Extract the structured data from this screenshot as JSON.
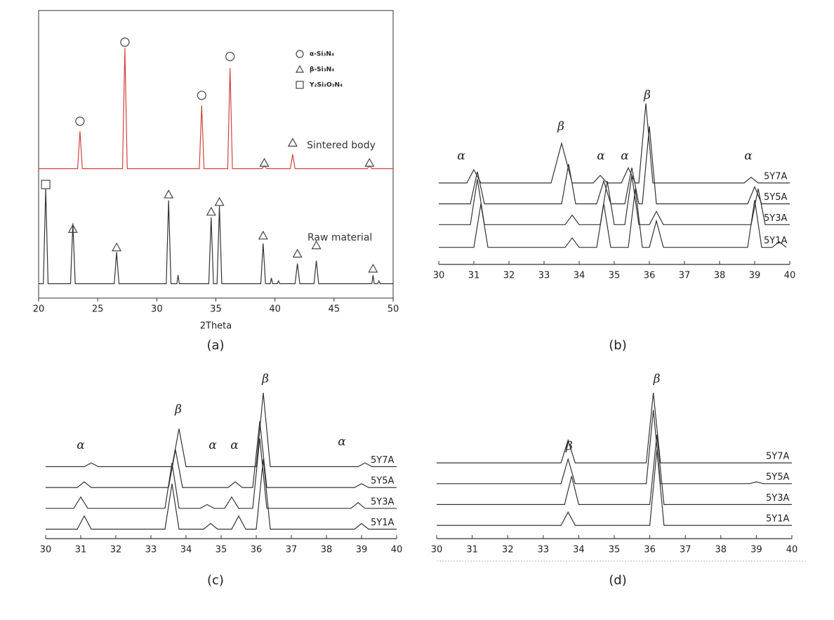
{
  "charts": [
    {
      "type": "line",
      "caption": "(a)",
      "xlabel": "2Theta",
      "xlim": [
        20,
        50
      ],
      "xticks": [
        20,
        25,
        30,
        35,
        40,
        45,
        50
      ],
      "ylim": [
        0,
        100
      ],
      "frame": true,
      "legend": [
        {
          "symbol": "circle",
          "label": "α-Si₃N₄"
        },
        {
          "symbol": "triangle",
          "label": "β-Si₃N₄"
        },
        {
          "symbol": "square",
          "label": "Y₂Si₃O₃N₄"
        }
      ],
      "series": [
        {
          "name": "Sintered body",
          "color": "#d0443f",
          "x": [
            20,
            23.3,
            23.5,
            23.7,
            27.1,
            27.3,
            27.5,
            33.6,
            33.8,
            34.0,
            36.0,
            36.2,
            36.4,
            38.9,
            39.1,
            39.3,
            41.3,
            41.5,
            41.7,
            47.8,
            48.0,
            48.2,
            50
          ],
          "values": [
            45,
            45,
            58,
            45,
            45,
            87,
            45,
            45,
            67,
            45,
            45,
            80,
            45,
            45,
            46,
            45,
            45,
            50,
            45,
            45,
            46,
            45,
            45
          ]
        },
        {
          "name": "Raw material",
          "color": "#333333",
          "x": [
            20,
            20.4,
            20.6,
            20.8,
            22.7,
            22.9,
            23.1,
            26.4,
            26.6,
            26.8,
            30.8,
            31.0,
            31.2,
            31.7,
            31.8,
            31.9,
            34.4,
            34.6,
            34.8,
            35.1,
            35.3,
            35.5,
            38.8,
            39.0,
            39.2,
            39.6,
            39.7,
            39.8,
            40.2,
            40.3,
            40.4,
            41.7,
            41.9,
            42.1,
            43.3,
            43.5,
            43.7,
            48.2,
            48.3,
            48.4,
            48.7,
            48.8,
            48.9,
            50
          ],
          "values": [
            5,
            5,
            38,
            5,
            5,
            26,
            5,
            5,
            16,
            5,
            5,
            34,
            5,
            5,
            8,
            5,
            5,
            28,
            5,
            5,
            32,
            5,
            5,
            19,
            5,
            5,
            7,
            5,
            5,
            6,
            5,
            5,
            12,
            5,
            5,
            13,
            5,
            5,
            8,
            5,
            5,
            6,
            5,
            5
          ]
        }
      ],
      "annotations": [
        {
          "text": "Sintered body",
          "x": 42.7,
          "y": 53
        },
        {
          "text": "Raw material",
          "x": 42.75,
          "y": 21
        }
      ],
      "markers": [
        {
          "symbol": "circle",
          "x": 23.5,
          "y": 61.5
        },
        {
          "symbol": "circle",
          "x": 27.3,
          "y": 89
        },
        {
          "symbol": "circle",
          "x": 33.8,
          "y": 70.5
        },
        {
          "symbol": "circle",
          "x": 36.2,
          "y": 84
        },
        {
          "symbol": "triangle",
          "x": 39.1,
          "y": 47
        },
        {
          "symbol": "triangle",
          "x": 41.5,
          "y": 54
        },
        {
          "symbol": "triangle",
          "x": 48.0,
          "y": 47
        },
        {
          "symbol": "square",
          "x": 20.6,
          "y": 39.5
        },
        {
          "symbol": "triangle",
          "x": 22.9,
          "y": 24
        },
        {
          "symbol": "triangle",
          "x": 26.6,
          "y": 17.6
        },
        {
          "symbol": "triangle",
          "x": 31.0,
          "y": 36
        },
        {
          "symbol": "triangle",
          "x": 34.6,
          "y": 30
        },
        {
          "symbol": "triangle",
          "x": 35.3,
          "y": 33.4
        },
        {
          "symbol": "triangle",
          "x": 39.0,
          "y": 21.7
        },
        {
          "symbol": "triangle",
          "x": 41.9,
          "y": 15.4
        },
        {
          "symbol": "triangle",
          "x": 43.5,
          "y": 18.3
        },
        {
          "symbol": "triangle",
          "x": 48.3,
          "y": 10.2
        }
      ]
    },
    {
      "type": "line",
      "caption": "(b)",
      "xlim": [
        30,
        40
      ],
      "xticks": [
        30,
        31,
        32,
        33,
        34,
        35,
        36,
        37,
        38,
        39,
        40
      ],
      "ylim": [
        0,
        100
      ],
      "frame": false,
      "series": [
        {
          "name": "5Y7A",
          "color": "#333333",
          "x": [
            30,
            30.8,
            31.0,
            31.2,
            33.2,
            33.5,
            33.8,
            34.4,
            34.6,
            34.8,
            35.2,
            35.4,
            35.6,
            35.7,
            35.9,
            36.1,
            38.7,
            38.9,
            39.1,
            40
          ],
          "values": [
            43,
            43,
            50,
            43,
            43,
            64,
            43,
            43,
            47,
            43,
            43,
            51,
            43,
            43,
            85,
            43,
            43,
            46,
            43,
            43
          ]
        },
        {
          "name": "5Y5A",
          "color": "#333333",
          "x": [
            30,
            30.9,
            31.1,
            31.3,
            33.5,
            33.7,
            33.9,
            34.5,
            34.7,
            34.9,
            35.3,
            35.5,
            35.7,
            35.8,
            36.0,
            36.2,
            38.8,
            39.0,
            39.2,
            40
          ],
          "values": [
            32,
            32,
            49,
            32,
            32,
            53,
            32,
            32,
            44,
            32,
            32,
            51,
            32,
            32,
            73,
            32,
            32,
            41,
            32,
            32
          ]
        },
        {
          "name": "5Y3A",
          "color": "#333333",
          "x": [
            30,
            30.9,
            31.1,
            31.3,
            33.6,
            33.8,
            34.0,
            34.6,
            34.8,
            35.0,
            35.3,
            35.5,
            35.7,
            36.0,
            36.2,
            36.4,
            38.9,
            39.1,
            39.3,
            40
          ],
          "values": [
            21,
            21,
            45,
            21,
            21,
            26,
            21,
            21,
            44,
            21,
            21,
            47,
            21,
            21,
            28,
            21,
            21,
            40,
            21,
            21
          ]
        },
        {
          "name": "5Y1A",
          "color": "#333333",
          "x": [
            30,
            31.0,
            31.2,
            31.4,
            33.6,
            33.8,
            34.0,
            34.5,
            34.7,
            34.9,
            35.4,
            35.6,
            35.8,
            36.0,
            36.2,
            36.4,
            38.8,
            39.0,
            39.2,
            39.5,
            39.7,
            39.9
          ],
          "values": [
            9,
            9,
            32,
            9,
            9,
            14,
            9,
            9,
            32,
            9,
            9,
            40,
            9,
            9,
            23,
            9,
            9,
            34,
            9,
            9,
            12,
            9
          ]
        }
      ],
      "annotations": [
        {
          "text": "α",
          "x": 30.64,
          "y": 57
        },
        {
          "text": "β",
          "x": 33.48,
          "y": 72.6
        },
        {
          "text": "α",
          "x": 34.62,
          "y": 57
        },
        {
          "text": "α",
          "x": 35.3,
          "y": 57
        },
        {
          "text": "β",
          "x": 35.94,
          "y": 89
        },
        {
          "text": "α",
          "x": 38.82,
          "y": 57
        }
      ]
    },
    {
      "type": "line",
      "caption": "(c)",
      "xlim": [
        30,
        40
      ],
      "xticks": [
        30,
        31,
        32,
        33,
        34,
        35,
        36,
        37,
        38,
        39,
        40
      ],
      "ylim": [
        0,
        100
      ],
      "frame": false,
      "series": [
        {
          "name": "5Y7A",
          "color": "#333333",
          "x": [
            30,
            31.1,
            31.3,
            31.5,
            33.6,
            33.8,
            34.0,
            36.0,
            36.2,
            36.4,
            38.9,
            39.1,
            39.3,
            40
          ],
          "values": [
            38,
            38,
            40,
            38,
            38,
            58,
            38,
            38,
            77,
            38,
            38,
            40,
            38,
            38
          ]
        },
        {
          "name": "5Y5A",
          "color": "#333333",
          "x": [
            30,
            30.9,
            31.1,
            31.3,
            33.5,
            33.7,
            33.9,
            35.2,
            35.4,
            35.6,
            35.9,
            36.1,
            36.3,
            38.8,
            39.0,
            39.2,
            40
          ],
          "values": [
            27,
            27,
            30,
            27,
            27,
            47,
            27,
            27,
            30,
            27,
            27,
            62,
            27,
            27,
            29,
            27,
            27
          ]
        },
        {
          "name": "5Y3A",
          "color": "#333333",
          "x": [
            30,
            30.8,
            31.0,
            31.2,
            33.4,
            33.6,
            33.8,
            34.4,
            34.6,
            34.8,
            35.1,
            35.3,
            35.5,
            35.9,
            36.1,
            36.3,
            38.7,
            38.9,
            39.1,
            40
          ],
          "values": [
            16,
            16,
            22,
            16,
            16,
            40,
            16,
            16,
            18,
            16,
            16,
            22,
            16,
            16,
            53,
            16,
            16,
            19,
            16,
            16
          ]
        },
        {
          "name": "5Y1A",
          "color": "#333333",
          "x": [
            30,
            30.9,
            31.1,
            31.3,
            33.4,
            33.6,
            33.8,
            34.5,
            34.7,
            34.9,
            35.3,
            35.5,
            35.7,
            36.0,
            36.2,
            36.4,
            38.8,
            39.0,
            39.2,
            40
          ],
          "values": [
            5,
            5,
            12,
            5,
            5,
            29,
            5,
            5,
            8,
            5,
            5,
            12,
            5,
            5,
            42,
            5,
            5,
            8,
            5,
            5
          ]
        }
      ],
      "annotations": [
        {
          "text": "α",
          "x": 31.0,
          "y": 49
        },
        {
          "text": "β",
          "x": 33.78,
          "y": 68
        },
        {
          "text": "α",
          "x": 34.76,
          "y": 49
        },
        {
          "text": "α",
          "x": 35.38,
          "y": 49
        },
        {
          "text": "β",
          "x": 36.26,
          "y": 84
        },
        {
          "text": "α",
          "x": 38.44,
          "y": 51
        }
      ]
    },
    {
      "type": "line",
      "caption": "(d)",
      "xlim": [
        30,
        40
      ],
      "xticks": [
        30,
        31,
        32,
        33,
        34,
        35,
        36,
        37,
        38,
        39,
        40
      ],
      "ylim": [
        0,
        100
      ],
      "frame": false,
      "series": [
        {
          "name": "5Y7A",
          "color": "#333333",
          "x": [
            30,
            33.5,
            33.7,
            33.9,
            35.9,
            36.1,
            36.3,
            40
          ],
          "values": [
            40,
            40,
            52,
            40,
            40,
            77,
            40,
            40
          ]
        },
        {
          "name": "5Y5A",
          "color": "#333333",
          "x": [
            30,
            33.5,
            33.7,
            33.9,
            35.9,
            36.1,
            36.3,
            38.8,
            39.0,
            39.2,
            40
          ],
          "values": [
            29,
            29,
            42,
            29,
            29,
            68,
            29,
            29,
            30,
            29,
            29
          ]
        },
        {
          "name": "5Y3A",
          "color": "#333333",
          "x": [
            30,
            33.6,
            33.8,
            34.0,
            36.0,
            36.2,
            36.4,
            40
          ],
          "values": [
            18,
            18,
            33,
            18,
            18,
            55,
            18,
            18
          ]
        },
        {
          "name": "5Y1A",
          "color": "#333333",
          "x": [
            30,
            33.5,
            33.7,
            33.9,
            36.0,
            36.2,
            36.4,
            40
          ],
          "values": [
            7,
            7,
            14,
            7,
            7,
            47,
            7,
            7
          ]
        }
      ],
      "annotations": [
        {
          "text": "β",
          "x": 33.73,
          "y": 48.5
        },
        {
          "text": "β",
          "x": 36.2,
          "y": 84
        }
      ]
    }
  ]
}
